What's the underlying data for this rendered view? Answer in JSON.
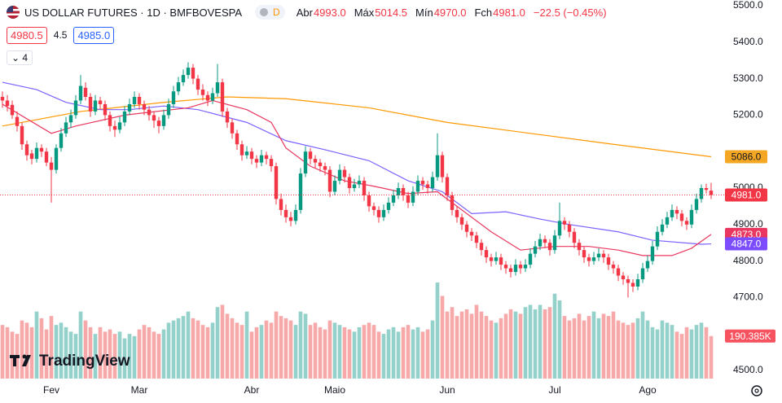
{
  "header": {
    "title": "US DOLLAR FUTURES · 1D · BMFBOVESPA",
    "badge": "D",
    "ohlc": [
      {
        "label": "Abr",
        "value": "4993.0"
      },
      {
        "label": "Máx",
        "value": "5014.5"
      },
      {
        "label": "Mín",
        "value": "4970.0"
      },
      {
        "label": "Fch",
        "value": "4981.0"
      }
    ],
    "change": "−22.5 (−0.45%)",
    "bid": "4980.5",
    "spread": "4.5",
    "ask": "4985.0",
    "indicators": "4"
  },
  "logo": "TradingView",
  "chart_data": {
    "type": "candlestick",
    "up_color": "#089981",
    "down_color": "#f23645",
    "up_volume_color": "#93d1ca",
    "down_volume_color": "#f7a8a8",
    "ylim": [
      4500,
      5500
    ],
    "yticks": [
      {
        "value": 5500,
        "label": "5500.0"
      },
      {
        "value": 5400,
        "label": "5400.0"
      },
      {
        "value": 5300,
        "label": "5300.0"
      },
      {
        "value": 5200,
        "label": "5200.0"
      },
      {
        "value": 5000,
        "label": "5000.0"
      },
      {
        "value": 4900,
        "label": "4900.0"
      },
      {
        "value": 4800,
        "label": "4800.0"
      },
      {
        "value": 4700,
        "label": "4700.0"
      },
      {
        "value": 4500,
        "label": "4500.0"
      }
    ],
    "xticks": [
      {
        "value": 10,
        "label": "Fev"
      },
      {
        "value": 28,
        "label": "Mar"
      },
      {
        "value": 51,
        "label": "Abr"
      },
      {
        "value": 68,
        "label": "Maio"
      },
      {
        "value": 91,
        "label": "Jun"
      },
      {
        "value": 113,
        "label": "Jul"
      },
      {
        "value": 132,
        "label": "Ago"
      }
    ],
    "candles": [
      [
        5250,
        5265,
        5220,
        5240
      ],
      [
        5240,
        5255,
        5210,
        5225
      ],
      [
        5228,
        5240,
        5190,
        5200
      ],
      [
        5195,
        5210,
        5155,
        5170
      ],
      [
        5170,
        5180,
        5105,
        5120
      ],
      [
        5120,
        5130,
        5075,
        5090
      ],
      [
        5095,
        5105,
        5065,
        5080
      ],
      [
        5080,
        5125,
        5070,
        5110
      ],
      [
        5110,
        5120,
        5085,
        5100
      ],
      [
        5100,
        5110,
        5060,
        5070
      ],
      [
        5070,
        5085,
        4960,
        5050
      ],
      [
        5050,
        5120,
        5040,
        5110
      ],
      [
        5110,
        5165,
        5100,
        5150
      ],
      [
        5150,
        5195,
        5140,
        5180
      ],
      [
        5180,
        5215,
        5165,
        5200
      ],
      [
        5200,
        5255,
        5190,
        5240
      ],
      [
        5240,
        5310,
        5230,
        5280
      ],
      [
        5275,
        5290,
        5240,
        5250
      ],
      [
        5250,
        5260,
        5195,
        5210
      ],
      [
        5210,
        5255,
        5200,
        5240
      ],
      [
        5240,
        5250,
        5215,
        5230
      ],
      [
        5230,
        5240,
        5185,
        5200
      ],
      [
        5200,
        5210,
        5155,
        5170
      ],
      [
        5170,
        5185,
        5140,
        5160
      ],
      [
        5160,
        5195,
        5150,
        5180
      ],
      [
        5180,
        5225,
        5170,
        5210
      ],
      [
        5210,
        5245,
        5200,
        5230
      ],
      [
        5230,
        5265,
        5220,
        5250
      ],
      [
        5250,
        5260,
        5215,
        5230
      ],
      [
        5230,
        5240,
        5200,
        5215
      ],
      [
        5215,
        5225,
        5185,
        5200
      ],
      [
        5200,
        5210,
        5165,
        5185
      ],
      [
        5185,
        5195,
        5150,
        5170
      ],
      [
        5170,
        5215,
        5160,
        5200
      ],
      [
        5200,
        5245,
        5190,
        5230
      ],
      [
        5230,
        5280,
        5220,
        5265
      ],
      [
        5265,
        5305,
        5255,
        5290
      ],
      [
        5290,
        5325,
        5280,
        5310
      ],
      [
        5310,
        5345,
        5300,
        5330
      ],
      [
        5330,
        5340,
        5285,
        5300
      ],
      [
        5300,
        5310,
        5255,
        5270
      ],
      [
        5270,
        5285,
        5240,
        5255
      ],
      [
        5255,
        5265,
        5225,
        5240
      ],
      [
        5240,
        5275,
        5230,
        5260
      ],
      [
        5260,
        5340,
        5250,
        5290
      ],
      [
        5290,
        5300,
        5195,
        5210
      ],
      [
        5210,
        5220,
        5165,
        5180
      ],
      [
        5180,
        5190,
        5135,
        5150
      ],
      [
        5150,
        5160,
        5105,
        5120
      ],
      [
        5120,
        5130,
        5075,
        5090
      ],
      [
        5090,
        5115,
        5080,
        5100
      ],
      [
        5100,
        5110,
        5065,
        5080
      ],
      [
        5080,
        5090,
        5055,
        5070
      ],
      [
        5070,
        5105,
        5060,
        5090
      ],
      [
        5090,
        5100,
        5065,
        5080
      ],
      [
        5080,
        5090,
        5045,
        5060
      ],
      [
        5060,
        5070,
        4955,
        4970
      ],
      [
        4970,
        4985,
        4925,
        4940
      ],
      [
        4940,
        4955,
        4905,
        4920
      ],
      [
        4920,
        4935,
        4895,
        4910
      ],
      [
        4910,
        4955,
        4900,
        4940
      ],
      [
        4940,
        5055,
        4930,
        5040
      ],
      [
        5040,
        5115,
        5030,
        5100
      ],
      [
        5100,
        5110,
        5065,
        5080
      ],
      [
        5080,
        5090,
        5055,
        5070
      ],
      [
        5070,
        5080,
        5045,
        5060
      ],
      [
        5060,
        5070,
        5035,
        5050
      ],
      [
        5050,
        5060,
        4975,
        4990
      ],
      [
        4990,
        5035,
        4980,
        5020
      ],
      [
        5020,
        5065,
        5010,
        5050
      ],
      [
        5050,
        5060,
        5015,
        5030
      ],
      [
        5030,
        5040,
        4985,
        5000
      ],
      [
        5000,
        5025,
        4990,
        5010
      ],
      [
        5010,
        5035,
        5000,
        5020
      ],
      [
        5020,
        5030,
        4965,
        4980
      ],
      [
        4980,
        4990,
        4935,
        4950
      ],
      [
        4950,
        4960,
        4925,
        4940
      ],
      [
        4940,
        4950,
        4905,
        4920
      ],
      [
        4920,
        4955,
        4910,
        4940
      ],
      [
        4940,
        4975,
        4930,
        4960
      ],
      [
        4960,
        4995,
        4950,
        4980
      ],
      [
        4980,
        5015,
        4970,
        5000
      ],
      [
        5000,
        5010,
        4965,
        4980
      ],
      [
        4980,
        4990,
        4945,
        4960
      ],
      [
        4960,
        5005,
        4950,
        4990
      ],
      [
        4990,
        5035,
        4980,
        5020
      ],
      [
        5020,
        5030,
        4995,
        5010
      ],
      [
        5010,
        5020,
        4985,
        5000
      ],
      [
        5000,
        5045,
        4990,
        5030
      ],
      [
        5030,
        5150,
        5020,
        5090
      ],
      [
        5090,
        5100,
        5015,
        5030
      ],
      [
        5030,
        5040,
        4965,
        4980
      ],
      [
        4980,
        4990,
        4925,
        4940
      ],
      [
        4940,
        4950,
        4905,
        4920
      ],
      [
        4920,
        4930,
        4885,
        4900
      ],
      [
        4900,
        4910,
        4865,
        4880
      ],
      [
        4880,
        4890,
        4855,
        4870
      ],
      [
        4870,
        4880,
        4835,
        4850
      ],
      [
        4850,
        4860,
        4815,
        4830
      ],
      [
        4830,
        4840,
        4795,
        4810
      ],
      [
        4810,
        4820,
        4785,
        4800
      ],
      [
        4800,
        4825,
        4790,
        4810
      ],
      [
        4810,
        4820,
        4775,
        4790
      ],
      [
        4790,
        4800,
        4765,
        4780
      ],
      [
        4780,
        4790,
        4755,
        4770
      ],
      [
        4770,
        4805,
        4760,
        4790
      ],
      [
        4790,
        4800,
        4765,
        4780
      ],
      [
        4780,
        4805,
        4770,
        4790
      ],
      [
        4790,
        4835,
        4780,
        4820
      ],
      [
        4820,
        4855,
        4810,
        4840
      ],
      [
        4840,
        4875,
        4830,
        4860
      ],
      [
        4860,
        4870,
        4835,
        4850
      ],
      [
        4850,
        4860,
        4815,
        4830
      ],
      [
        4830,
        4885,
        4820,
        4870
      ],
      [
        4870,
        4960,
        4860,
        4910
      ],
      [
        4910,
        4920,
        4885,
        4900
      ],
      [
        4900,
        4910,
        4865,
        4880
      ],
      [
        4880,
        4890,
        4835,
        4850
      ],
      [
        4850,
        4860,
        4815,
        4830
      ],
      [
        4830,
        4840,
        4795,
        4810
      ],
      [
        4810,
        4820,
        4785,
        4800
      ],
      [
        4800,
        4825,
        4790,
        4810
      ],
      [
        4810,
        4835,
        4800,
        4820
      ],
      [
        4820,
        4830,
        4795,
        4810
      ],
      [
        4810,
        4820,
        4775,
        4790
      ],
      [
        4790,
        4800,
        4765,
        4780
      ],
      [
        4780,
        4790,
        4745,
        4760
      ],
      [
        4760,
        4770,
        4735,
        4750
      ],
      [
        4750,
        4760,
        4700,
        4740
      ],
      [
        4740,
        4750,
        4715,
        4730
      ],
      [
        4730,
        4765,
        4720,
        4750
      ],
      [
        4750,
        4795,
        4740,
        4780
      ],
      [
        4780,
        4815,
        4770,
        4800
      ],
      [
        4800,
        4855,
        4790,
        4840
      ],
      [
        4840,
        4895,
        4830,
        4880
      ],
      [
        4880,
        4915,
        4870,
        4900
      ],
      [
        4900,
        4935,
        4890,
        4920
      ],
      [
        4920,
        4955,
        4910,
        4940
      ],
      [
        4940,
        4950,
        4915,
        4930
      ],
      [
        4930,
        4940,
        4895,
        4910
      ],
      [
        4910,
        4920,
        4885,
        4900
      ],
      [
        4900,
        4955,
        4890,
        4940
      ],
      [
        4940,
        4985,
        4930,
        4970
      ],
      [
        4970,
        5010,
        4960,
        5000
      ],
      [
        5000,
        5012,
        4985,
        4995
      ],
      [
        4993,
        5014.5,
        4970,
        4981
      ]
    ],
    "volume": [
      240,
      230,
      210,
      200,
      260,
      250,
      230,
      300,
      270,
      220,
      280,
      240,
      250,
      230,
      210,
      200,
      300,
      260,
      230,
      200,
      230,
      210,
      220,
      200,
      210,
      180,
      200,
      190,
      220,
      240,
      230,
      210,
      200,
      220,
      250,
      260,
      270,
      280,
      300,
      270,
      260,
      240,
      230,
      250,
      320,
      330,
      290,
      270,
      250,
      240,
      300,
      210,
      230,
      240,
      260,
      250,
      300,
      280,
      270,
      260,
      240,
      300,
      290,
      240,
      250,
      230,
      220,
      260,
      250,
      240,
      230,
      220,
      210,
      230,
      240,
      250,
      240,
      210,
      200,
      220,
      230,
      210,
      230,
      240,
      220,
      230,
      210,
      220,
      260,
      430,
      370,
      300,
      320,
      280,
      300,
      310,
      290,
      330,
      300,
      280,
      260,
      250,
      270,
      290,
      310,
      300,
      290,
      320,
      330,
      310,
      330,
      310,
      320,
      380,
      350,
      280,
      260,
      270,
      290,
      260,
      280,
      300,
      270,
      290,
      280,
      300,
      260,
      250,
      240,
      250,
      270,
      300,
      260,
      230,
      220,
      260,
      250,
      240,
      210,
      200,
      230,
      220,
      240,
      250,
      230,
      190.385
    ],
    "lines": [
      {
        "color": "#ff9800",
        "x": [
          0,
          16,
          33,
          46,
          58,
          75,
          91,
          108,
          125,
          145
        ],
        "values": [
          5170,
          5210,
          5235,
          5250,
          5245,
          5220,
          5180,
          5150,
          5120,
          5086
        ]
      },
      {
        "color": "#7b61ff",
        "x": [
          0,
          7,
          13,
          20,
          26,
          33,
          40,
          50,
          58,
          66,
          75,
          83,
          90,
          96,
          103,
          110,
          116,
          126,
          133,
          143,
          145
        ],
        "values": [
          5290,
          5270,
          5235,
          5215,
          5215,
          5225,
          5215,
          5180,
          5130,
          5105,
          5075,
          5020,
          4990,
          4930,
          4935,
          4915,
          4900,
          4880,
          4857,
          4846,
          4847
        ]
      },
      {
        "color": "#e9375f",
        "x": [
          0,
          10,
          15,
          25,
          38,
          43,
          50,
          55,
          58,
          63,
          70,
          76,
          83,
          89,
          93,
          100,
          106,
          113,
          120,
          126,
          131,
          137,
          141,
          145
        ],
        "values": [
          5230,
          5150,
          5170,
          5200,
          5220,
          5240,
          5215,
          5180,
          5110,
          5060,
          5020,
          5005,
          4985,
          4990,
          4950,
          4880,
          4830,
          4840,
          4840,
          4830,
          4815,
          4815,
          4835,
          4873
        ]
      }
    ],
    "price_labels": [
      {
        "value": 5086,
        "label": "5086.0",
        "color": "#f5a623",
        "text_color": "#131722"
      },
      {
        "value": 4981,
        "label": "4981.0",
        "color": "#f23645",
        "text_color": "#ffffff"
      },
      {
        "value": 4873,
        "label": "4873.0",
        "color": "#e9375f",
        "text_color": "#ffffff"
      },
      {
        "value": 4847,
        "label": "4847.0",
        "color": "#7b4dff",
        "text_color": "#ffffff"
      }
    ],
    "volume_label": {
      "value": 190.385,
      "label": "190.385K",
      "color": "#f7525f"
    }
  }
}
